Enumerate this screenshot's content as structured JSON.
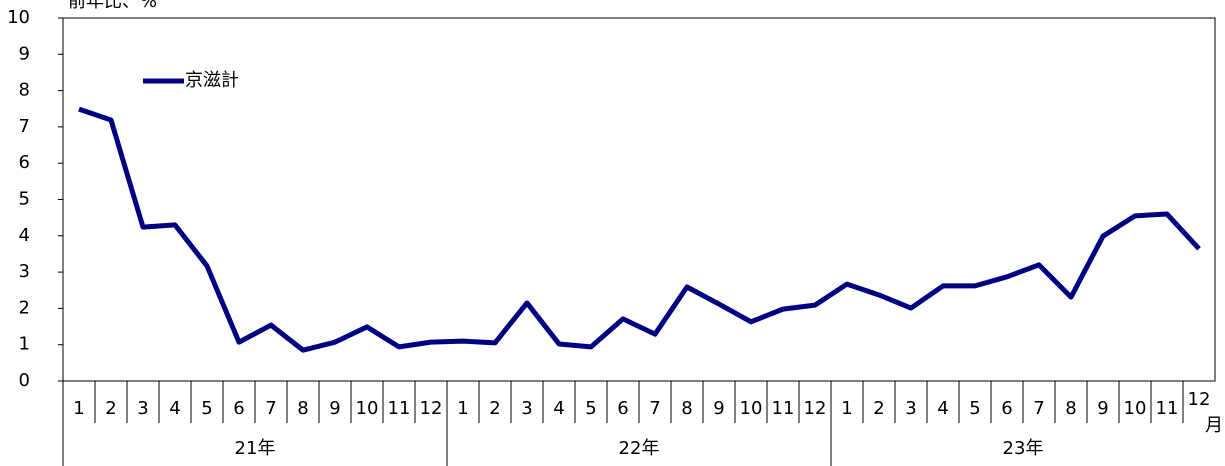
{
  "chart_data": {
    "type": "line",
    "title": "前年比、%",
    "categories": [
      "1",
      "2",
      "3",
      "4",
      "5",
      "6",
      "7",
      "8",
      "9",
      "10",
      "11",
      "12",
      "1",
      "2",
      "3",
      "4",
      "5",
      "6",
      "7",
      "8",
      "9",
      "10",
      "11",
      "12",
      "1",
      "2",
      "3",
      "4",
      "5",
      "6",
      "7",
      "8",
      "9",
      "10",
      "11",
      "12"
    ],
    "groups": [
      "21年",
      "22年",
      "23年"
    ],
    "x_unit": "月",
    "series": [
      {
        "name": "京滋計",
        "color": "#000080",
        "values": [
          7.49,
          7.19,
          4.24,
          4.3,
          3.17,
          1.07,
          1.54,
          0.85,
          1.07,
          1.49,
          0.94,
          1.07,
          1.1,
          1.05,
          2.15,
          1.02,
          0.94,
          1.71,
          1.29,
          2.59,
          2.12,
          1.63,
          1.98,
          2.09,
          2.67,
          2.37,
          2.01,
          2.62,
          2.62,
          2.87,
          3.2,
          2.31,
          3.99,
          4.55,
          4.6,
          3.64
        ]
      }
    ],
    "ylim": [
      0,
      10
    ],
    "yticks": [
      0,
      1,
      2,
      3,
      4,
      5,
      6,
      7,
      8,
      9,
      10
    ],
    "grid": false
  }
}
